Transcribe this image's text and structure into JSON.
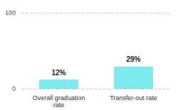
{
  "chart_data": {
    "type": "bar",
    "categories": [
      "Overall graduation\nrate",
      "Transfer-out rate"
    ],
    "values": [
      12,
      29
    ],
    "value_labels": [
      "12%",
      "29%"
    ],
    "data_labels": true,
    "color": "#7de8ee",
    "ylim": [
      0,
      100
    ],
    "yticks": [
      0,
      100
    ],
    "grid": true
  }
}
